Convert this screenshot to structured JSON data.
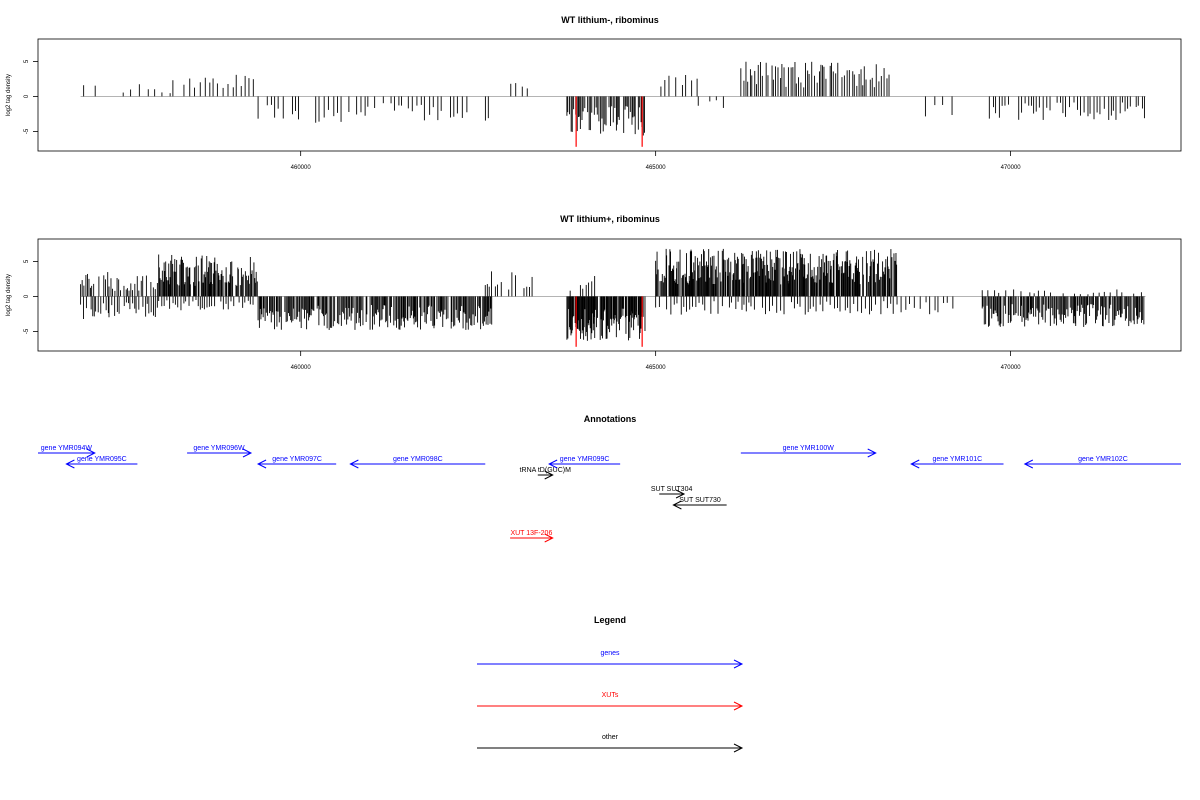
{
  "chart_data": [
    {
      "type": "bar",
      "title": "WT lithium-, ribominus",
      "ylabel": "log2 tag density",
      "xlim": [
        456300,
        472400
      ],
      "ylim": [
        -7.8,
        8.2
      ],
      "x_ticks": [
        460000,
        465000,
        470000
      ],
      "x_tick_labels": [
        "460000",
        "465000",
        "470000"
      ],
      "y_ticks": [
        -5,
        0,
        5
      ],
      "y_tick_labels": [
        "-5",
        "0",
        "5"
      ],
      "bar_color": "#000000",
      "highlight_color": "#ff0000",
      "highlight_x": [
        463880,
        464810
      ],
      "highlight_values": [
        -7.2,
        -7.2
      ],
      "regions": [
        {
          "start": 456900,
          "end": 457200,
          "step": 70,
          "sign": 1,
          "amp": 2.2
        },
        {
          "start": 457500,
          "end": 458200,
          "step": 90,
          "sign": 1,
          "amp": 1.8
        },
        {
          "start": 458200,
          "end": 459400,
          "step": 60,
          "sign": 1,
          "amp": 3.4
        },
        {
          "start": 459400,
          "end": 462700,
          "step": 55,
          "sign": -1,
          "amp": 3.8
        },
        {
          "start": 462900,
          "end": 463300,
          "step": 80,
          "sign": 1,
          "amp": 3.0
        },
        {
          "start": 463750,
          "end": 464850,
          "step": 18,
          "sign": -1,
          "amp": 5.6
        },
        {
          "start": 465000,
          "end": 465600,
          "step": 70,
          "sign": 1,
          "amp": 3.5
        },
        {
          "start": 465600,
          "end": 466000,
          "step": 90,
          "sign": -1,
          "amp": 2.0
        },
        {
          "start": 466200,
          "end": 468300,
          "step": 30,
          "sign": 1,
          "amp": 5.0
        },
        {
          "start": 468800,
          "end": 469200,
          "step": 110,
          "sign": -1,
          "amp": 3.6
        },
        {
          "start": 469700,
          "end": 471900,
          "step": 45,
          "sign": -1,
          "amp": 3.4
        }
      ]
    },
    {
      "type": "bar",
      "title": "WT lithium+, ribominus",
      "ylabel": "log2 tag density",
      "xlim": [
        456300,
        472400
      ],
      "ylim": [
        -7.8,
        8.2
      ],
      "x_ticks": [
        460000,
        465000,
        470000
      ],
      "x_tick_labels": [
        "460000",
        "465000",
        "470000"
      ],
      "y_ticks": [
        -5,
        0,
        5
      ],
      "y_tick_labels": [
        "-5",
        "0",
        "5"
      ],
      "bar_color": "#000000",
      "highlight_color": "#ff0000",
      "highlight_x": [
        463880,
        464810
      ],
      "highlight_values": [
        -7.2,
        -7.2
      ],
      "regions": [
        {
          "start": 456900,
          "end": 457300,
          "step": 25,
          "sign": 1,
          "amp": 4.0
        },
        {
          "start": 456900,
          "end": 457300,
          "step": 30,
          "sign": -1,
          "amp": 3.6
        },
        {
          "start": 457300,
          "end": 458000,
          "step": 25,
          "sign": 1,
          "amp": 3.0
        },
        {
          "start": 457300,
          "end": 458000,
          "step": 30,
          "sign": -1,
          "amp": 3.0
        },
        {
          "start": 458000,
          "end": 459400,
          "step": 12,
          "sign": 1,
          "amp": 6.0
        },
        {
          "start": 458000,
          "end": 459400,
          "step": 40,
          "sign": -1,
          "amp": 2.0
        },
        {
          "start": 459400,
          "end": 462700,
          "step": 14,
          "sign": -1,
          "amp": 4.8
        },
        {
          "start": 462600,
          "end": 463300,
          "step": 40,
          "sign": 1,
          "amp": 3.8
        },
        {
          "start": 463750,
          "end": 464850,
          "step": 10,
          "sign": -1,
          "amp": 6.4
        },
        {
          "start": 463750,
          "end": 464200,
          "step": 40,
          "sign": 1,
          "amp": 3.0
        },
        {
          "start": 465000,
          "end": 468400,
          "step": 11,
          "sign": 1,
          "amp": 6.8
        },
        {
          "start": 465000,
          "end": 468400,
          "step": 45,
          "sign": -1,
          "amp": 2.6
        },
        {
          "start": 468400,
          "end": 469200,
          "step": 60,
          "sign": -1,
          "amp": 2.6
        },
        {
          "start": 469600,
          "end": 471900,
          "step": 15,
          "sign": -1,
          "amp": 4.4
        },
        {
          "start": 469600,
          "end": 471900,
          "step": 80,
          "sign": 1,
          "amp": 1.0
        }
      ]
    }
  ],
  "annotations": {
    "title": "Annotations",
    "features": [
      {
        "label": "gene YMR094W",
        "color": "#0000ff",
        "start": 456300,
        "end": 457100,
        "strand": "+",
        "row": 0
      },
      {
        "label": "gene YMR095C",
        "color": "#0000ff",
        "start": 456700,
        "end": 457700,
        "strand": "-",
        "row": 1
      },
      {
        "label": "gene YMR096W",
        "color": "#0000ff",
        "start": 458400,
        "end": 459300,
        "strand": "+",
        "row": 0
      },
      {
        "label": "gene YMR097C",
        "color": "#0000ff",
        "start": 459400,
        "end": 460500,
        "strand": "-",
        "row": 1
      },
      {
        "label": "gene YMR098C",
        "color": "#0000ff",
        "start": 460700,
        "end": 462600,
        "strand": "-",
        "row": 1
      },
      {
        "label": "tRNA tD(GUC)M",
        "color": "#000000",
        "start": 463340,
        "end": 463550,
        "strand": "+",
        "row": 2
      },
      {
        "label": "gene YMR099C",
        "color": "#0000ff",
        "start": 463500,
        "end": 464500,
        "strand": "-",
        "row": 1
      },
      {
        "label": "gene YMR100W",
        "color": "#0000ff",
        "start": 466200,
        "end": 468100,
        "strand": "+",
        "row": 0
      },
      {
        "label": "gene YMR101C",
        "color": "#0000ff",
        "start": 468600,
        "end": 469900,
        "strand": "-",
        "row": 1
      },
      {
        "label": "gene YMR102C",
        "color": "#0000ff",
        "start": 470200,
        "end": 472400,
        "strand": "-",
        "row": 1
      },
      {
        "label": "SUT SUT304",
        "color": "#000000",
        "start": 465050,
        "end": 465400,
        "strand": "+",
        "row": 3
      },
      {
        "label": "SUT SUT730",
        "color": "#000000",
        "start": 465250,
        "end": 466000,
        "strand": "-",
        "row": 4
      },
      {
        "label": "XUT 13F-206",
        "color": "#ff0000",
        "start": 462950,
        "end": 463550,
        "strand": "+",
        "row": 5
      }
    ]
  },
  "legend": {
    "title": "Legend",
    "entries": [
      {
        "label": "genes",
        "color": "#0000ff"
      },
      {
        "label": "XUTs",
        "color": "#ff0000"
      },
      {
        "label": "other",
        "color": "#000000"
      }
    ]
  }
}
